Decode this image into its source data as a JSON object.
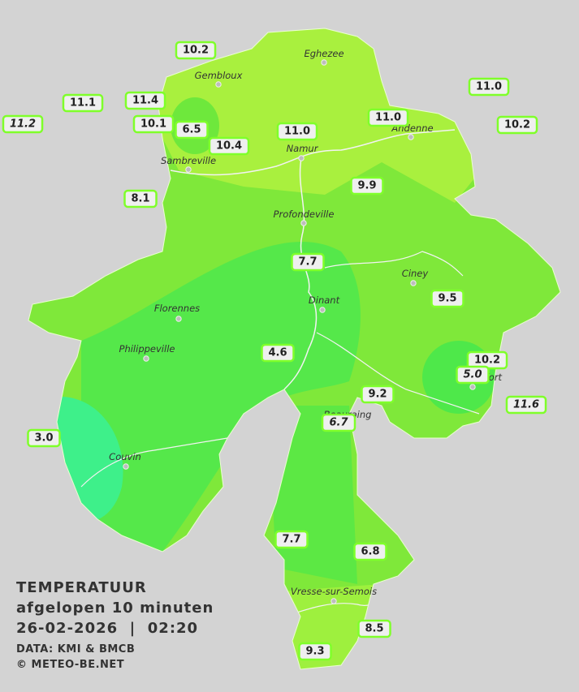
{
  "map": {
    "towns": [
      "Eghezee",
      "Gembloux",
      "Andenne",
      "Namur",
      "Sambreville",
      "Profondeville",
      "Ciney",
      "Dinant",
      "Florennes",
      "Philippeville",
      "Rochefort",
      "Beauraing",
      "Couvin",
      "Vresse-sur-Semois"
    ],
    "stations": [
      "10.2",
      "11.1",
      "11.4",
      "11.2",
      "10.1",
      "6.5",
      "10.4",
      "11.0",
      "11.0",
      "11.0",
      "10.2",
      "9.9",
      "8.1",
      "7.7",
      "9.5",
      "4.6",
      "10.2",
      "5.0",
      "9.2",
      "11.6",
      "6.7",
      "3.0",
      "7.7",
      "6.8",
      "8.5",
      "9.3"
    ]
  },
  "legend": {
    "title": "TEMPERATUUR",
    "subtitle": "afgelopen 10 minuten",
    "datetime": "26-02-2026  |  02:20",
    "source": "DATA: KMI & BMCB",
    "copyright": "© METEO-BE.NET"
  }
}
